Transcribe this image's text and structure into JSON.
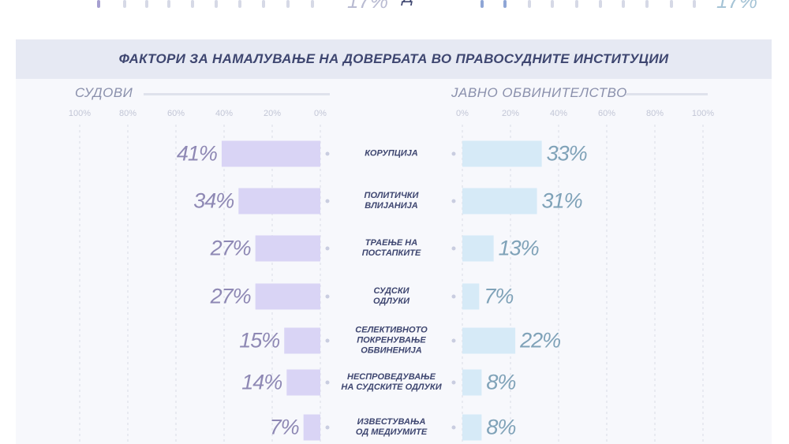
{
  "top_fragment": {
    "left_value": "17%",
    "left_partial": "Д",
    "right_value": "17%"
  },
  "chart_data": {
    "type": "bar",
    "title": "ФАКТОРИ ЗА НАМАЛУВАЊЕ НА ДОВЕРБАТА ВО ПРАВОСУДНИТЕ ИНСТИТУЦИИ",
    "categories": [
      [
        "КОРУПЦИЈА"
      ],
      [
        "ПОЛИТИЧКИ",
        "ВЛИЈАНИЈА"
      ],
      [
        "ТРАЕЊЕ НА",
        "ПОСТАПКИТЕ"
      ],
      [
        "СУДСКИ",
        "ОДЛУКИ"
      ],
      [
        "СЕЛЕКТИВНОТО",
        "ПОКРЕНУВАЊЕ",
        "ОБВИНЕНИЈА"
      ],
      [
        "НЕСПРОВЕДУВАЊЕ",
        "НА СУДСКИТЕ ОДЛУКИ"
      ],
      [
        "ИЗВЕСТУВАЊА",
        "ОД МЕДИУМИТЕ"
      ]
    ],
    "series": [
      {
        "name": "СУДОВИ",
        "values": [
          41,
          34,
          27,
          27,
          15,
          14,
          7
        ],
        "labels": [
          "41%",
          "34%",
          "27%",
          "27%",
          "15%",
          "14%",
          "7%"
        ],
        "color": "#d9d4f5"
      },
      {
        "name": "ЈАВНО ОБВИНИТЕЛСТВО",
        "values": [
          33,
          31,
          13,
          7,
          22,
          8,
          8
        ],
        "labels": [
          "33%",
          "31%",
          "13%",
          "7%",
          "22%",
          "8%",
          "8%"
        ],
        "color": "#d6eaf7"
      }
    ],
    "left_ticks": [
      "100%",
      "80%",
      "60%",
      "40%",
      "20%",
      "0%"
    ],
    "right_ticks": [
      "0%",
      "20%",
      "40%",
      "60%",
      "80%",
      "100%"
    ],
    "xlim": [
      0,
      100
    ],
    "grid": true,
    "axis_color": "#c9cde0",
    "grid_color": "#d8dbe6"
  }
}
